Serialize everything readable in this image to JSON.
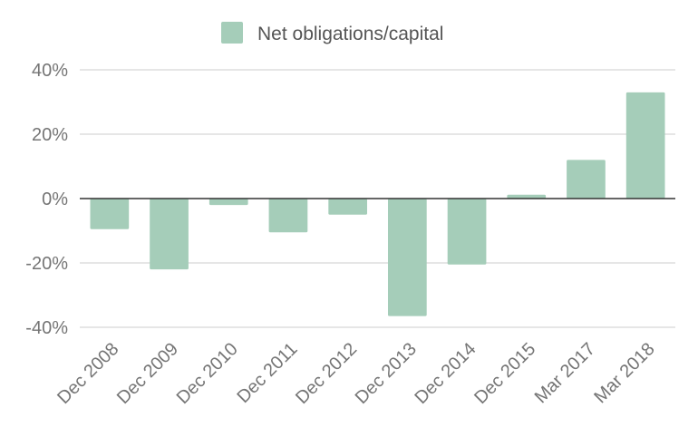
{
  "chart_data": {
    "type": "bar",
    "title": "",
    "xlabel": "",
    "ylabel": "",
    "categories": [
      "Dec 2008",
      "Dec 2009",
      "Dec 2010",
      "Dec 2011",
      "Dec 2012",
      "Dec 2013",
      "Dec 2014",
      "Dec 2015",
      "Mar 2017",
      "Mar 2018"
    ],
    "series": [
      {
        "name": "Net obligations/capital",
        "values": [
          -9.5,
          -22,
          -2,
          -10.5,
          -5,
          -36.5,
          -20.5,
          1.2,
          12,
          33
        ],
        "color": "#a5cdb9"
      }
    ],
    "ylim": [
      -40,
      40
    ],
    "yticks": [
      40,
      20,
      0,
      -20,
      -40
    ],
    "ytick_labels": [
      "40%",
      "20%",
      "0%",
      "-20%",
      "-40%"
    ],
    "grid": true,
    "legend_position": "top-center"
  }
}
